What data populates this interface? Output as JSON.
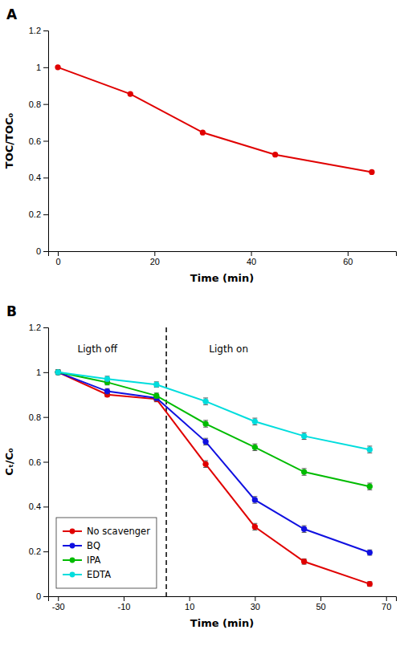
{
  "chart_data": [
    {
      "type": "line",
      "title": "A",
      "x": [
        0,
        15,
        30,
        45,
        65
      ],
      "values": [
        1.0,
        0.855,
        0.645,
        0.525,
        0.43
      ],
      "color": "#e00000",
      "marker": "circle",
      "x_label": "Time (min)",
      "y_label": "TOC/TOC₀",
      "xlim": [
        -2,
        70
      ],
      "ylim": [
        0,
        1.2
      ],
      "xticks": [
        0,
        20,
        40,
        60
      ],
      "yticks": [
        0,
        0.2,
        0.4,
        0.6,
        0.8,
        1,
        1.2
      ],
      "grid": false
    },
    {
      "type": "line",
      "title": "B",
      "x": [
        -30,
        -15,
        0,
        15,
        30,
        45,
        65
      ],
      "series": [
        {
          "name": "No scavenger",
          "color": "#e00000",
          "marker": "circle",
          "values": [
            1.0,
            0.9,
            0.88,
            0.59,
            0.31,
            0.155,
            0.055
          ],
          "yerr": [
            0.01,
            0.01,
            0.012,
            0.015,
            0.015,
            0.012,
            0.01
          ]
        },
        {
          "name": "BQ",
          "color": "#1010e0",
          "marker": "circle",
          "values": [
            1.0,
            0.915,
            0.885,
            0.69,
            0.43,
            0.3,
            0.195
          ],
          "yerr": [
            0.01,
            0.012,
            0.012,
            0.015,
            0.015,
            0.015,
            0.012
          ]
        },
        {
          "name": "IPA",
          "color": "#00bb00",
          "marker": "circle",
          "values": [
            1.0,
            0.955,
            0.895,
            0.77,
            0.665,
            0.555,
            0.49
          ],
          "yerr": [
            0.01,
            0.012,
            0.012,
            0.015,
            0.015,
            0.015,
            0.015
          ]
        },
        {
          "name": "EDTA",
          "color": "#00dddd",
          "marker": "circle",
          "values": [
            1.0,
            0.97,
            0.945,
            0.87,
            0.78,
            0.715,
            0.655
          ],
          "yerr": [
            0.01,
            0.012,
            0.012,
            0.015,
            0.015,
            0.015,
            0.015
          ]
        }
      ],
      "x_label": "Time (min)",
      "y_label": "Cₜ/C₀",
      "xlim": [
        -33,
        73
      ],
      "ylim": [
        0,
        1.2
      ],
      "xticks": [
        -30,
        -10,
        10,
        30,
        50,
        70
      ],
      "yticks": [
        0,
        0.2,
        0.4,
        0.6,
        0.8,
        1,
        1.2
      ],
      "vlines": [
        {
          "x": 3,
          "line_style": "dashed"
        }
      ],
      "annotations": [
        {
          "text": "Ligth off",
          "x": -18,
          "y": 1.1
        },
        {
          "text": "Ligth on",
          "x": 22,
          "y": 1.1
        }
      ],
      "legend": "lower left",
      "grid": false
    }
  ]
}
